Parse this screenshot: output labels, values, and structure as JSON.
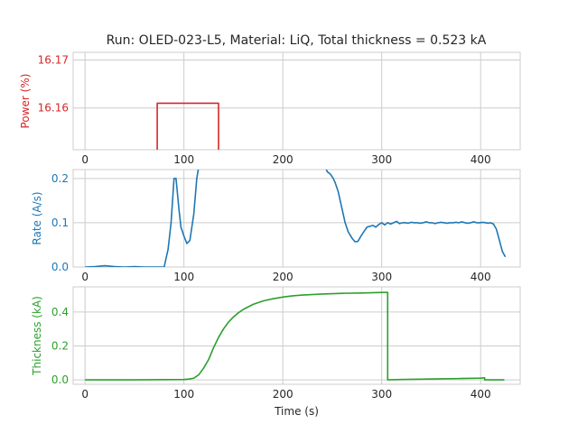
{
  "figure": {
    "title": "Run: OLED-023-L5, Material: LiQ, Total thickness = 0.523 kA"
  },
  "chart_data": [
    {
      "type": "line",
      "name": "power",
      "ylabel": "Power (%)",
      "xlabel": "",
      "color": "#d62728",
      "xlim": [
        -12,
        440
      ],
      "ylim": [
        16.1513,
        16.1716
      ],
      "x_ticks": [
        0,
        100,
        200,
        300,
        400
      ],
      "x_tick_labels": [
        "0",
        "100",
        "200",
        "300",
        "400"
      ],
      "y_ticks": [
        16.16,
        16.17
      ],
      "y_tick_labels": [
        "16.16",
        "16.17"
      ],
      "series": [
        {
          "x": [
            73,
            73,
            135,
            135
          ],
          "y": [
            16.1513,
            16.161,
            16.161,
            16.1513
          ]
        }
      ]
    },
    {
      "type": "line",
      "name": "rate",
      "ylabel": "Rate (A/s)",
      "xlabel": "",
      "color": "#1f77b4",
      "xlim": [
        -12,
        440
      ],
      "ylim": [
        0,
        0.22
      ],
      "x_ticks": [
        0,
        100,
        200,
        300,
        400
      ],
      "x_tick_labels": [
        "0",
        "100",
        "200",
        "300",
        "400"
      ],
      "y_ticks": [
        0.0,
        0.1,
        0.2
      ],
      "y_tick_labels": [
        "0.0",
        "0.1",
        "0.2"
      ],
      "series": [
        {
          "x": [
            0,
            10,
            15,
            20,
            25,
            30,
            40,
            50,
            60,
            70,
            80,
            84,
            87,
            90,
            92,
            95,
            97,
            100,
            103,
            106,
            110,
            113,
            116,
            118
          ],
          "y": [
            0.0,
            0.001,
            0.002,
            0.003,
            0.002,
            0.001,
            0.0,
            0.001,
            0.0,
            0.0,
            0.0,
            0.04,
            0.1,
            0.2,
            0.2,
            0.13,
            0.09,
            0.07,
            0.053,
            0.06,
            0.12,
            0.2,
            0.24,
            0.28
          ]
        },
        {
          "x": [
            242,
            245,
            248,
            251,
            253,
            256,
            260,
            263,
            266,
            270,
            273,
            276,
            279,
            282,
            285,
            288,
            291,
            294,
            297,
            300,
            303,
            306,
            309,
            312,
            315,
            318,
            321,
            324,
            327,
            330,
            333,
            336,
            339,
            342,
            345,
            348,
            351,
            354,
            357,
            360,
            363,
            366,
            369,
            372,
            375,
            378,
            381,
            384,
            387,
            390,
            393,
            396,
            399,
            402,
            405,
            408,
            410,
            413,
            416,
            419,
            422,
            425
          ],
          "y": [
            0.23,
            0.215,
            0.21,
            0.2,
            0.19,
            0.17,
            0.13,
            0.1,
            0.08,
            0.065,
            0.057,
            0.058,
            0.07,
            0.08,
            0.09,
            0.092,
            0.094,
            0.09,
            0.096,
            0.1,
            0.095,
            0.1,
            0.097,
            0.1,
            0.103,
            0.098,
            0.1,
            0.1,
            0.099,
            0.101,
            0.1,
            0.1,
            0.099,
            0.1,
            0.102,
            0.1,
            0.1,
            0.098,
            0.1,
            0.101,
            0.1,
            0.099,
            0.1,
            0.1,
            0.101,
            0.1,
            0.102,
            0.1,
            0.099,
            0.1,
            0.102,
            0.1,
            0.1,
            0.101,
            0.1,
            0.099,
            0.1,
            0.097,
            0.085,
            0.06,
            0.035,
            0.023
          ]
        }
      ]
    },
    {
      "type": "line",
      "name": "thickness",
      "ylabel": "Thickness (kA)",
      "xlabel": "Time (s)",
      "color": "#2ca02c",
      "xlim": [
        -12,
        440
      ],
      "ylim": [
        -0.026,
        0.548
      ],
      "x_ticks": [
        0,
        100,
        200,
        300,
        400
      ],
      "x_tick_labels": [
        "0",
        "100",
        "200",
        "300",
        "400"
      ],
      "y_ticks": [
        0.0,
        0.2,
        0.4
      ],
      "y_tick_labels": [
        "0.0",
        "0.2",
        "0.4"
      ],
      "series": [
        {
          "x": [
            0,
            50,
            100,
            105,
            110,
            115,
            120,
            125,
            130,
            135,
            140,
            145,
            150,
            155,
            160,
            170,
            180,
            190,
            200,
            210,
            220,
            240,
            260,
            280,
            300,
            306,
            306,
            320,
            340,
            360,
            380,
            400,
            404,
            404,
            410,
            424
          ],
          "y": [
            0.0,
            0.0,
            0.002,
            0.005,
            0.01,
            0.03,
            0.07,
            0.12,
            0.19,
            0.25,
            0.3,
            0.34,
            0.37,
            0.395,
            0.415,
            0.445,
            0.465,
            0.478,
            0.488,
            0.495,
            0.5,
            0.506,
            0.51,
            0.512,
            0.515,
            0.515,
            0.0,
            0.002,
            0.004,
            0.006,
            0.008,
            0.01,
            0.012,
            0.0,
            0.0,
            0.0
          ]
        }
      ]
    }
  ]
}
